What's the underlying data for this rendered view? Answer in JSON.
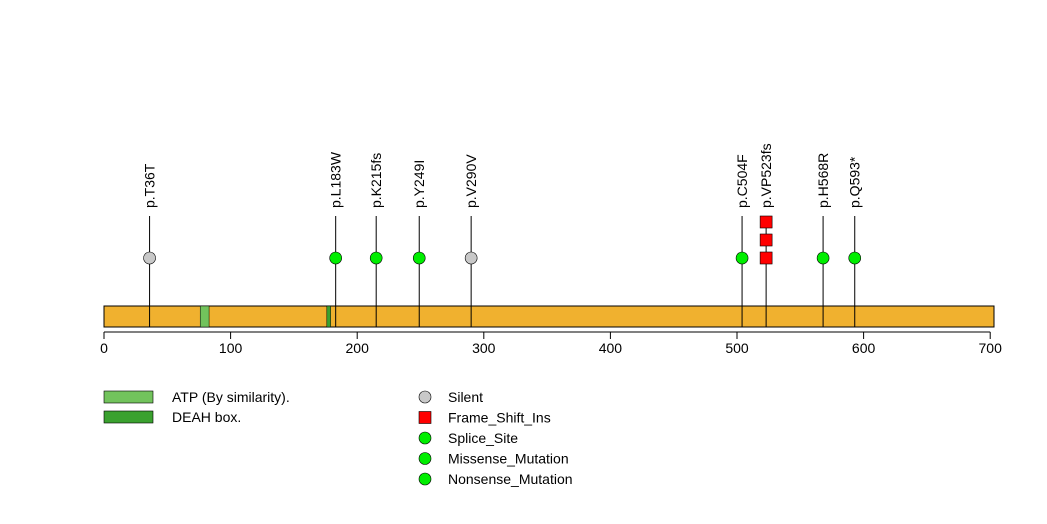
{
  "chart_data": {
    "type": "lollipop",
    "protein_length": 703,
    "x_range": [
      0,
      703
    ],
    "x_ticks": [
      "0",
      "100",
      "200",
      "300",
      "400",
      "500",
      "600",
      "700"
    ],
    "x_tick_values": [
      0,
      100,
      200,
      300,
      400,
      500,
      600,
      700
    ],
    "backbone_color": "#f0b12f",
    "domains": [
      {
        "name": "ATP (By similarity).",
        "start": 76,
        "end": 83,
        "color": "#72c35c"
      },
      {
        "name": "DEAH box.",
        "start": 176,
        "end": 179,
        "color": "#3aa12f"
      }
    ],
    "mutations": [
      {
        "label": "p.T36T",
        "position": 36,
        "type": "Silent",
        "stack": 1
      },
      {
        "label": "p.L183W",
        "position": 183,
        "type": "Missense_Mutation",
        "stack": 1
      },
      {
        "label": "p.K215fs",
        "position": 215,
        "type": "Splice_Site",
        "stack": 1
      },
      {
        "label": "p.Y249I",
        "position": 249,
        "type": "Missense_Mutation",
        "stack": 1
      },
      {
        "label": "p.V290V",
        "position": 290,
        "type": "Silent",
        "stack": 1
      },
      {
        "label": "p.C504F",
        "position": 504,
        "type": "Missense_Mutation",
        "stack": 1
      },
      {
        "label": "p.VP523fs",
        "position": 523,
        "type": "Frame_Shift_Ins",
        "stack": 3
      },
      {
        "label": "p.H568R",
        "position": 568,
        "type": "Missense_Mutation",
        "stack": 1
      },
      {
        "label": "p.Q593*",
        "position": 593,
        "type": "Nonsense_Mutation",
        "stack": 1
      }
    ],
    "legend_domains": [
      {
        "name": "ATP (By similarity).",
        "color": "#72c35c"
      },
      {
        "name": "DEAH box.",
        "color": "#3aa12f"
      }
    ],
    "legend_mutations": [
      {
        "name": "Silent",
        "shape": "circle",
        "color": "#c8c8c8"
      },
      {
        "name": "Frame_Shift_Ins",
        "shape": "square",
        "color": "#ff0000"
      },
      {
        "name": "Splice_Site",
        "shape": "circle",
        "color": "#00ee00"
      },
      {
        "name": "Missense_Mutation",
        "shape": "circle",
        "color": "#00ee00"
      },
      {
        "name": "Nonsense_Mutation",
        "shape": "circle",
        "color": "#00ee00"
      }
    ]
  }
}
